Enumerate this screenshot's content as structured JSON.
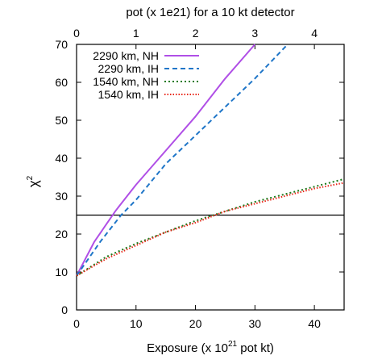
{
  "chart_data": {
    "type": "line",
    "title": "",
    "xlabel": "Exposure (x 10",
    "xlabel_sup": "21",
    "xlabel_suffix": " pot kt)",
    "ylabel": "χ",
    "ylabel_sup": "2",
    "x2label": "pot (x 1e21) for a 10 kt detector",
    "xlim": [
      0,
      45
    ],
    "ylim": [
      0,
      70
    ],
    "x_ticks": [
      0,
      10,
      20,
      30,
      40
    ],
    "y_ticks": [
      0,
      10,
      20,
      30,
      40,
      50,
      60,
      70
    ],
    "x2lim": [
      0,
      4.5
    ],
    "x2_ticks": [
      0,
      1,
      2,
      3,
      4
    ],
    "grid": false,
    "legend_position": "top-left",
    "reference_line": {
      "y": 25,
      "color": "#000000"
    },
    "series": [
      {
        "name": "2290 km, NH",
        "color": "#b04fe6",
        "dash": "solid",
        "x": [
          0,
          3,
          6.5,
          7,
          10,
          15,
          20,
          25,
          30
        ],
        "y": [
          9,
          18,
          26,
          27,
          33,
          42,
          51,
          61,
          70
        ]
      },
      {
        "name": "2290 km, IH",
        "color": "#1f76c8",
        "dash": "dash",
        "x": [
          0,
          4,
          7.5,
          10,
          15,
          20,
          25,
          30,
          35.5
        ],
        "y": [
          9,
          18,
          25,
          29,
          38.5,
          46,
          53.5,
          61,
          70
        ]
      },
      {
        "name": "1540 km, NH",
        "color": "#1a7a1a",
        "dash": "dot",
        "x": [
          0,
          5,
          10,
          15,
          20,
          25,
          30,
          35,
          40,
          45
        ],
        "y": [
          9,
          14,
          17.5,
          20.5,
          23.5,
          26,
          28.5,
          30.5,
          32.5,
          34.5
        ]
      },
      {
        "name": "1540 km, IH",
        "color": "#e8291c",
        "dash": "dot",
        "x": [
          0,
          5,
          10,
          15,
          20,
          25,
          30,
          35,
          40,
          45
        ],
        "y": [
          9,
          13.5,
          17,
          20.5,
          23,
          26,
          28,
          30,
          32,
          33.5
        ]
      }
    ]
  }
}
